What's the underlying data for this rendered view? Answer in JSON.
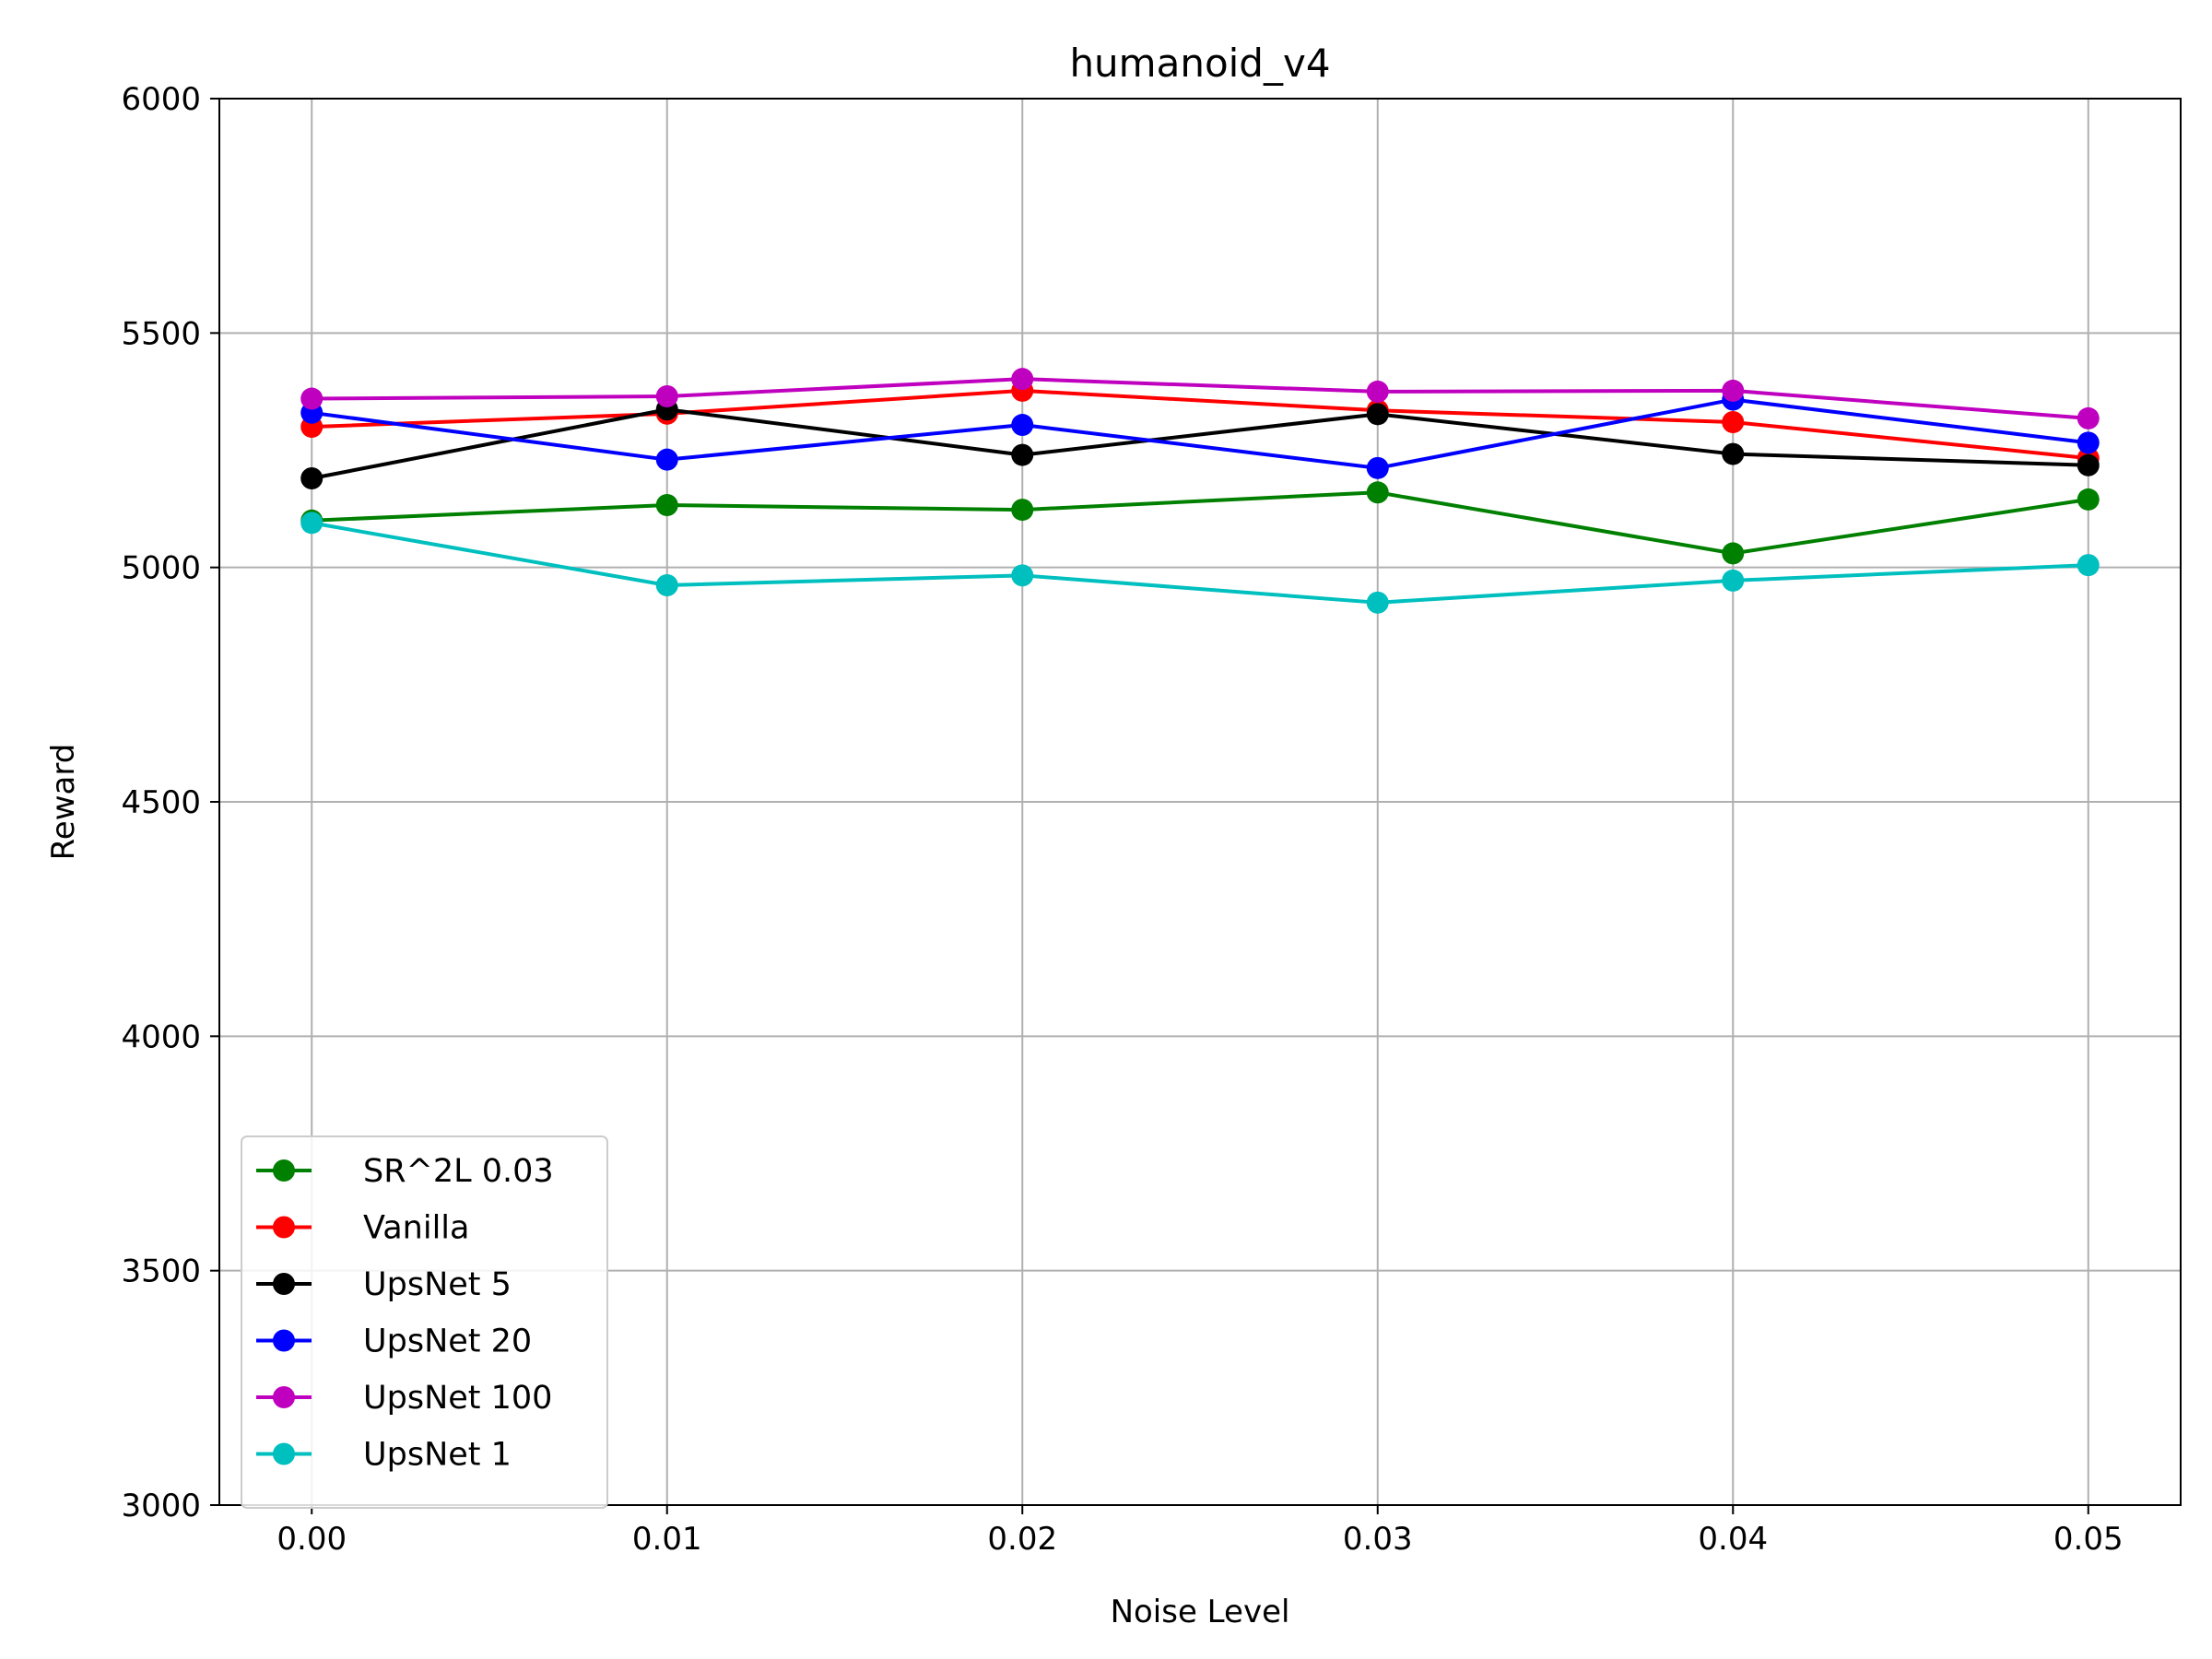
{
  "chart_data": {
    "type": "line",
    "title": "humanoid_v4",
    "xlabel": "Noise Level",
    "ylabel": "Reward",
    "x": [
      0.0,
      0.01,
      0.02,
      0.03,
      0.04,
      0.05
    ],
    "x_tick_labels": [
      "0.00",
      "0.01",
      "0.02",
      "0.03",
      "0.04",
      "0.05"
    ],
    "xlim": [
      -0.0026,
      0.0526
    ],
    "ylim": [
      3000,
      6000
    ],
    "y_ticks": [
      3000,
      3500,
      4000,
      4500,
      5000,
      5500,
      6000
    ],
    "y_tick_labels": [
      "3000",
      "3500",
      "4000",
      "4500",
      "5000",
      "5500",
      "6000"
    ],
    "grid": true,
    "legend_position": "lower-left",
    "series": [
      {
        "name": "SR^2L 0.03",
        "color": "#008000",
        "values": [
          5100,
          5133,
          5123,
          5160,
          5030,
          5145
        ]
      },
      {
        "name": "Vanilla",
        "color": "#ff0000",
        "values": [
          5300,
          5328,
          5377,
          5335,
          5310,
          5233
        ]
      },
      {
        "name": "UpsNet 5",
        "color": "#000000",
        "values": [
          5190,
          5337,
          5240,
          5327,
          5242,
          5218
        ]
      },
      {
        "name": "UpsNet 20",
        "color": "#0000ff",
        "values": [
          5330,
          5230,
          5304,
          5212,
          5358,
          5266
        ]
      },
      {
        "name": "UpsNet 100",
        "color": "#bf00bf",
        "values": [
          5360,
          5365,
          5402,
          5375,
          5377,
          5318
        ]
      },
      {
        "name": "UpsNet 1",
        "color": "#00bfbf",
        "values": [
          5095,
          4962,
          4983,
          4925,
          4972,
          5005
        ]
      }
    ]
  }
}
